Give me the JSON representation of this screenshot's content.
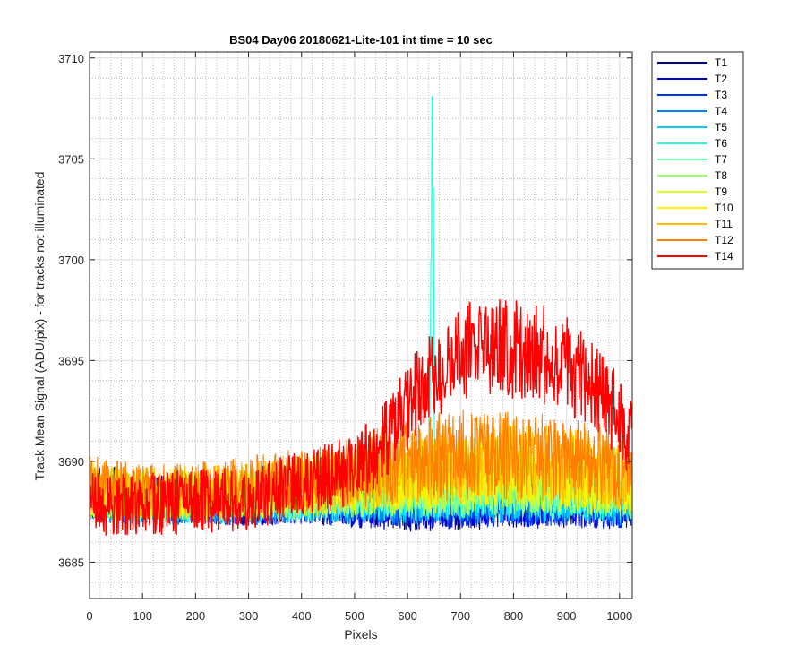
{
  "chart_data": {
    "type": "line",
    "title": "BS04 Day06 20180621-Lite-101 int time = 10 sec",
    "xlabel": "Pixels",
    "ylabel": "Track Mean Signal (ADU/pix) - for tracks not illuminated",
    "xlim": [
      0,
      1024
    ],
    "ylim": [
      3683.2,
      3710.3
    ],
    "xticks": [
      0,
      100,
      200,
      300,
      400,
      500,
      600,
      700,
      800,
      900,
      1000
    ],
    "yticks": [
      3685,
      3690,
      3695,
      3700,
      3705,
      3710
    ],
    "grid": true,
    "minor_grid": true,
    "legend_position": "outside-top-right",
    "series": [
      {
        "name": "T1",
        "color": "#00008F",
        "mean_by_pixel": {
          "x": [
            0,
            100,
            200,
            300,
            400,
            500,
            600,
            700,
            800,
            900,
            1000,
            1024
          ],
          "y": [
            3688.6,
            3688.2,
            3688.0,
            3687.9,
            3688.0,
            3687.8,
            3687.6,
            3687.7,
            3687.7,
            3687.8,
            3687.7,
            3687.7
          ]
        }
      },
      {
        "name": "T2",
        "color": "#0000DF",
        "mean_by_pixel": {
          "x": [
            0,
            100,
            200,
            300,
            400,
            500,
            600,
            700,
            800,
            900,
            1000,
            1024
          ],
          "y": [
            3688.4,
            3688.1,
            3688.0,
            3687.9,
            3688.0,
            3687.8,
            3687.7,
            3687.8,
            3687.8,
            3687.8,
            3687.8,
            3687.8
          ]
        }
      },
      {
        "name": "T3",
        "color": "#0030FF",
        "mean_by_pixel": {
          "x": [
            0,
            100,
            200,
            300,
            400,
            500,
            600,
            700,
            800,
            900,
            1000,
            1024
          ],
          "y": [
            3688.3,
            3688.0,
            3688.0,
            3687.9,
            3688.0,
            3687.9,
            3687.8,
            3687.8,
            3687.8,
            3687.9,
            3687.8,
            3687.8
          ]
        }
      },
      {
        "name": "T4",
        "color": "#0080FF",
        "mean_by_pixel": {
          "x": [
            0,
            100,
            200,
            300,
            400,
            500,
            600,
            700,
            800,
            900,
            1000,
            1024
          ],
          "y": [
            3688.2,
            3687.8,
            3687.9,
            3687.9,
            3688.0,
            3688.0,
            3687.9,
            3687.9,
            3687.9,
            3687.9,
            3687.9,
            3687.9
          ]
        }
      },
      {
        "name": "T5",
        "color": "#00CFFF",
        "mean_by_pixel": {
          "x": [
            0,
            100,
            200,
            300,
            400,
            500,
            600,
            700,
            800,
            900,
            1000,
            1024
          ],
          "y": [
            3688.2,
            3688.0,
            3688.0,
            3688.0,
            3688.1,
            3688.1,
            3688.0,
            3688.1,
            3688.1,
            3688.1,
            3688.0,
            3688.0
          ]
        }
      },
      {
        "name": "T6",
        "color": "#20FFDF",
        "mean_by_pixel": {
          "x": [
            0,
            100,
            200,
            300,
            400,
            500,
            600,
            640,
            646,
            652,
            700,
            800,
            900,
            1000,
            1024
          ],
          "y": [
            3688.3,
            3688.1,
            3688.1,
            3688.1,
            3688.2,
            3688.3,
            3688.3,
            3688.3,
            3710.3,
            3688.4,
            3688.4,
            3688.5,
            3688.4,
            3688.3,
            3688.3
          ]
        }
      },
      {
        "name": "T7",
        "color": "#70FFAF",
        "mean_by_pixel": {
          "x": [
            0,
            100,
            200,
            300,
            400,
            500,
            600,
            700,
            800,
            900,
            1000,
            1024
          ],
          "y": [
            3688.3,
            3688.1,
            3688.2,
            3688.2,
            3688.3,
            3688.4,
            3688.5,
            3688.6,
            3688.7,
            3688.6,
            3688.5,
            3688.4
          ]
        }
      },
      {
        "name": "T8",
        "color": "#9FFF60",
        "mean_by_pixel": {
          "x": [
            0,
            100,
            200,
            300,
            400,
            500,
            600,
            700,
            800,
            900,
            1000,
            1024
          ],
          "y": [
            3688.4,
            3688.2,
            3688.3,
            3688.3,
            3688.4,
            3688.6,
            3688.7,
            3688.8,
            3688.9,
            3688.8,
            3688.6,
            3688.5
          ]
        }
      },
      {
        "name": "T9",
        "color": "#DFFF20",
        "mean_by_pixel": {
          "x": [
            0,
            100,
            200,
            300,
            400,
            500,
            600,
            700,
            800,
            900,
            1000,
            1024
          ],
          "y": [
            3688.5,
            3688.3,
            3688.3,
            3688.4,
            3688.6,
            3688.8,
            3689.0,
            3689.1,
            3689.2,
            3689.1,
            3688.8,
            3688.7
          ]
        }
      },
      {
        "name": "T10",
        "color": "#FFEF00",
        "mean_by_pixel": {
          "x": [
            0,
            100,
            200,
            300,
            400,
            500,
            600,
            700,
            800,
            900,
            1000,
            1024
          ],
          "y": [
            3688.6,
            3688.4,
            3688.4,
            3688.5,
            3688.7,
            3689.0,
            3689.3,
            3689.5,
            3689.6,
            3689.4,
            3689.1,
            3688.9
          ]
        }
      },
      {
        "name": "T11",
        "color": "#FFBF00",
        "mean_by_pixel": {
          "x": [
            0,
            100,
            200,
            300,
            400,
            500,
            600,
            700,
            800,
            900,
            1000,
            1024
          ],
          "y": [
            3688.7,
            3688.4,
            3688.5,
            3688.6,
            3688.9,
            3689.2,
            3689.6,
            3689.9,
            3690.0,
            3689.8,
            3689.4,
            3689.2
          ]
        }
      },
      {
        "name": "T12",
        "color": "#FF8000",
        "mean_by_pixel": {
          "x": [
            0,
            100,
            200,
            300,
            400,
            500,
            600,
            700,
            800,
            900,
            1000,
            1024
          ],
          "y": [
            3688.8,
            3688.5,
            3688.6,
            3688.8,
            3689.1,
            3689.5,
            3690.0,
            3690.3,
            3690.4,
            3690.2,
            3689.7,
            3689.4
          ]
        }
      },
      {
        "name": "T14",
        "color": "#FF0000",
        "mean_by_pixel": {
          "x": [
            0,
            100,
            200,
            300,
            400,
            500,
            540,
            600,
            650,
            700,
            750,
            800,
            850,
            900,
            950,
            1000,
            1024
          ],
          "y": [
            3687.9,
            3687.9,
            3688.0,
            3688.2,
            3688.8,
            3689.6,
            3690.4,
            3692.7,
            3694.4,
            3695.3,
            3695.6,
            3695.6,
            3695.4,
            3694.8,
            3693.8,
            3692.2,
            3691.0
          ]
        }
      }
    ]
  }
}
